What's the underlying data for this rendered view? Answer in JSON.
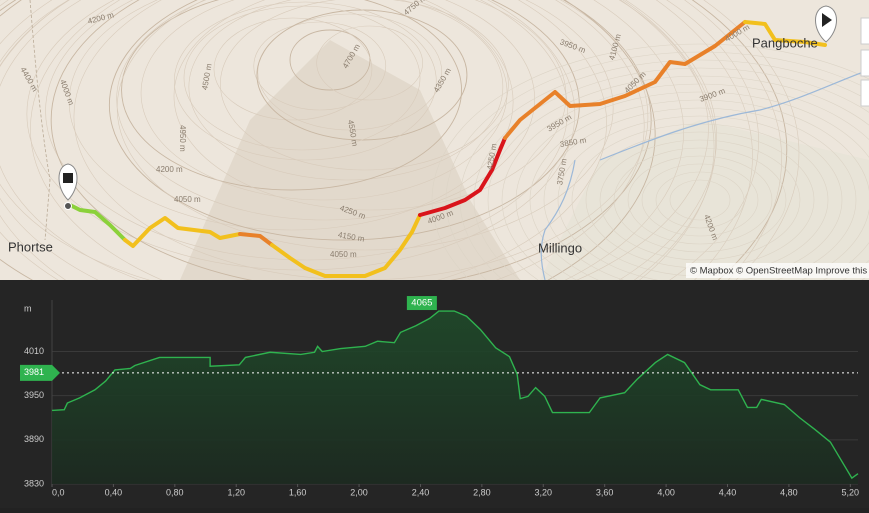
{
  "map": {
    "places": [
      "Phortse",
      "Millingo",
      "Pangboche"
    ],
    "contour_labels": [
      "4200 m",
      "4000 m",
      "4400 m",
      "4500 m",
      "4950 m",
      "4200 m",
      "4050 m",
      "4700 m",
      "4550 m",
      "4250 m",
      "4150 m",
      "4050 m",
      "4750 m",
      "4350 m",
      "4250 m",
      "3950 m",
      "3850 m",
      "3750 m",
      "4000 m",
      "4100 m",
      "4050 m",
      "3900 m",
      "4000 m",
      "3950 m",
      "4200 m"
    ],
    "attribution": "© Mapbox © OpenStreetMap Improve this"
  },
  "chart_data": {
    "type": "line",
    "y_label": "m",
    "x": [
      0,
      0.08,
      0.1,
      0.18,
      0.28,
      0.35,
      0.41,
      0.51,
      0.54,
      0.7,
      1.03,
      1.03,
      1.22,
      1.26,
      1.42,
      1.62,
      1.71,
      1.73,
      1.76,
      1.88,
      2.04,
      2.12,
      2.23,
      2.27,
      2.37,
      2.46,
      2.52,
      2.62,
      2.7,
      2.79,
      2.89,
      2.98,
      3.03,
      3.05,
      3.1,
      3.15,
      3.21,
      3.26,
      3.5,
      3.57,
      3.73,
      3.81,
      3.93,
      4.01,
      4.12,
      4.22,
      4.29,
      4.47,
      4.53,
      4.59,
      4.62,
      4.77,
      4.87,
      4.97,
      5.07,
      5.17,
      5.21,
      5.25
    ],
    "series": [
      {
        "color": "#2fb34f",
        "values": [
          3930,
          3931,
          3940,
          3947,
          3958,
          3970,
          3985,
          3987,
          3991,
          4002,
          4002,
          3990,
          3992,
          4002,
          4009,
          4006,
          4009,
          4017,
          4010,
          4014,
          4017,
          4024,
          4022,
          4036,
          4045,
          4055,
          4065,
          4065,
          4058,
          4040,
          4015,
          4003,
          3979,
          3946,
          3949,
          3961,
          3949,
          3927,
          3927,
          3947,
          3954,
          3972,
          3995,
          4006,
          3995,
          3965,
          3958,
          3958,
          3934,
          3934,
          3945,
          3938,
          3920,
          3904,
          3887,
          3852,
          3838,
          3844
        ]
      }
    ],
    "max": 4065,
    "average": 3981,
    "xlim": [
      0,
      5.25
    ],
    "ylim": [
      3830,
      4080
    ],
    "xticks": [
      {
        "value": 0,
        "label": "0,0"
      },
      {
        "value": 0.4,
        "label": "0,40"
      },
      {
        "value": 0.8,
        "label": "0,80"
      },
      {
        "value": 1.2,
        "label": "1,20"
      },
      {
        "value": 1.6,
        "label": "1,60"
      },
      {
        "value": 2.0,
        "label": "2,00"
      },
      {
        "value": 2.4,
        "label": "2,40"
      },
      {
        "value": 2.8,
        "label": "2,80"
      },
      {
        "value": 3.2,
        "label": "3,20"
      },
      {
        "value": 3.6,
        "label": "3,60"
      },
      {
        "value": 4.0,
        "label": "4,00"
      },
      {
        "value": 4.4,
        "label": "4,40"
      },
      {
        "value": 4.8,
        "label": "4,80"
      },
      {
        "value": 5.2,
        "label": "5,20"
      }
    ],
    "yticks": [
      3830,
      3890,
      3950,
      4010
    ],
    "grid": true
  }
}
